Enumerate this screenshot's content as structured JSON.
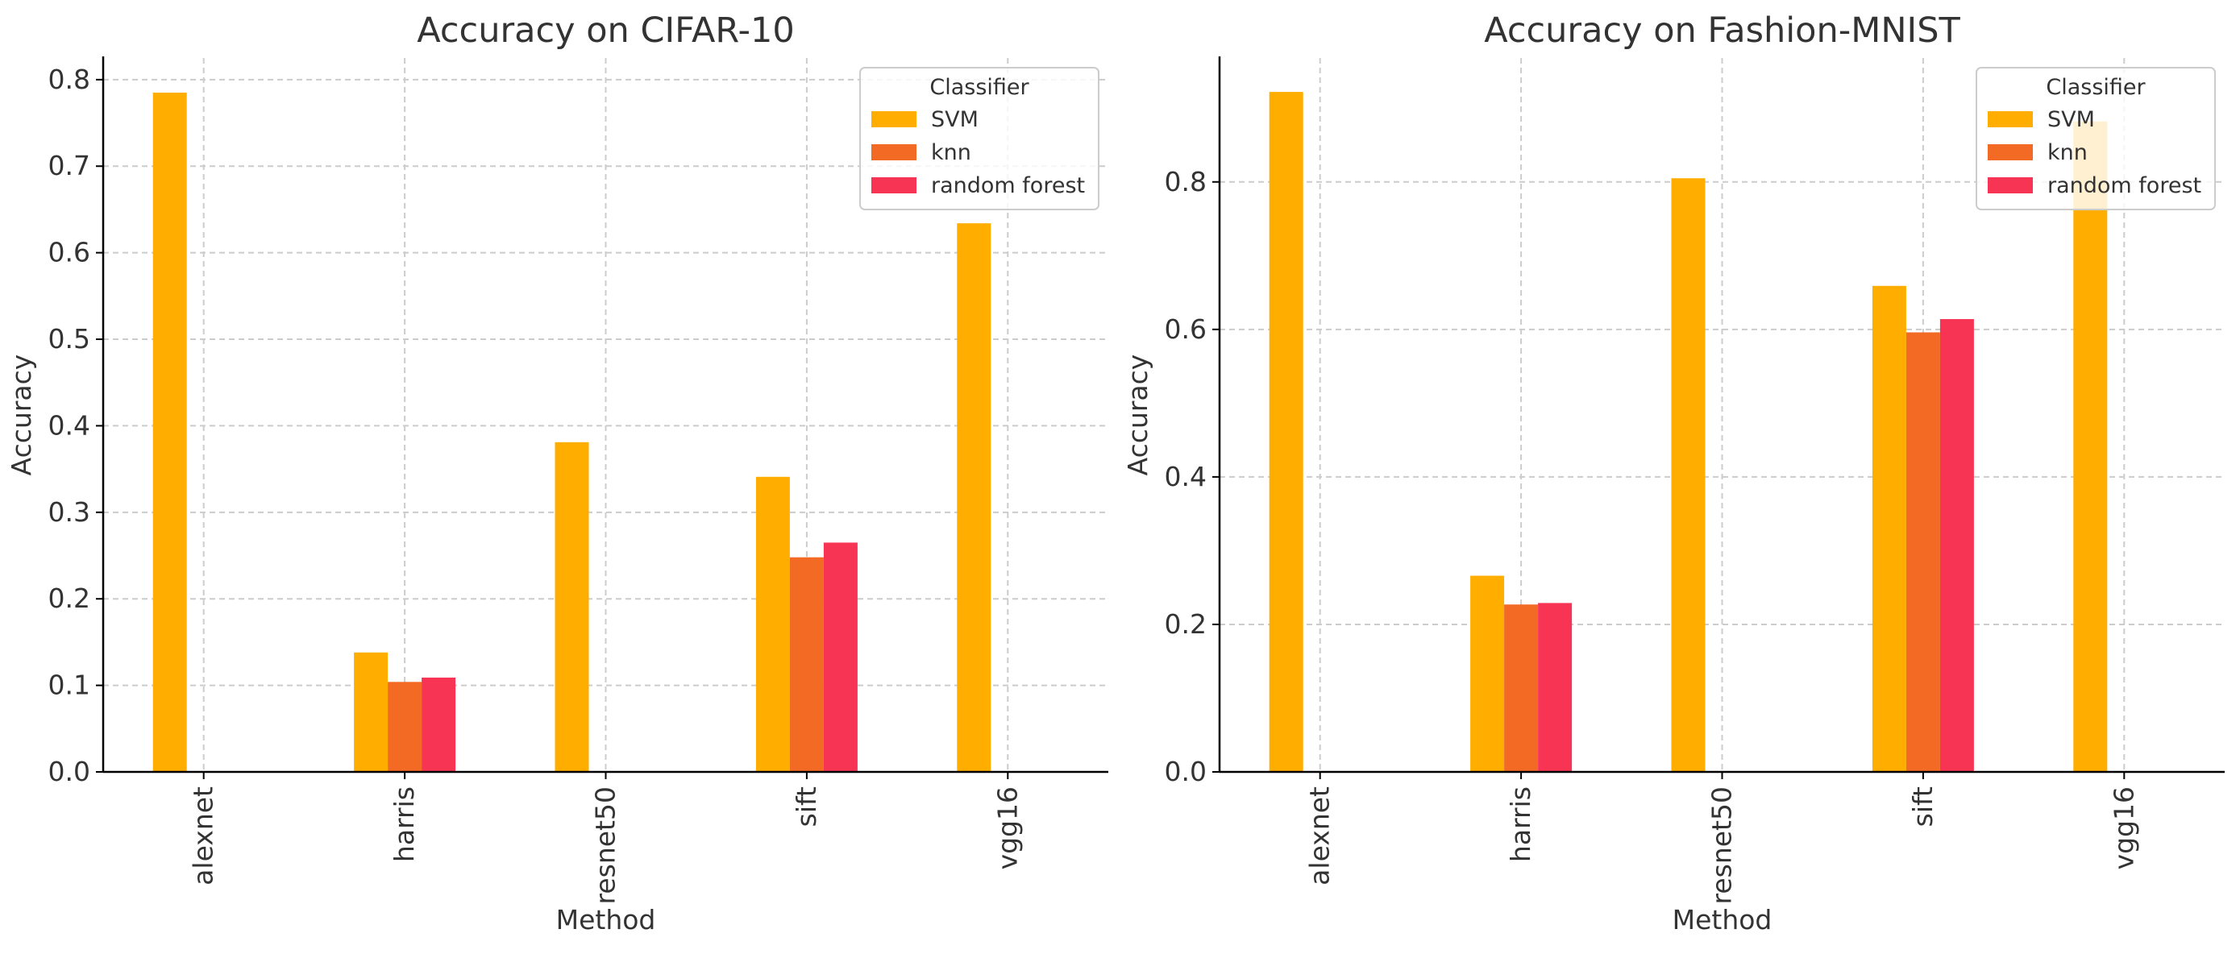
{
  "chart_data": [
    {
      "type": "bar",
      "title": "Accuracy on CIFAR-10",
      "xlabel": "Method",
      "ylabel": "Accuracy",
      "categories": [
        "alexnet",
        "harris",
        "resnet50",
        "sift",
        "vgg16"
      ],
      "series": [
        {
          "name": "SVM",
          "values": [
            0.785,
            0.138,
            0.381,
            0.341,
            0.634
          ]
        },
        {
          "name": "knn",
          "values": [
            null,
            0.104,
            null,
            0.248,
            null
          ]
        },
        {
          "name": "random forest",
          "values": [
            null,
            0.109,
            null,
            0.265,
            null
          ]
        }
      ],
      "ylim": [
        0,
        0.825
      ],
      "yticks": [
        0.0,
        0.1,
        0.2,
        0.3,
        0.4,
        0.5,
        0.6,
        0.7,
        0.8
      ],
      "ytick_labels": [
        "0.0",
        "0.1",
        "0.2",
        "0.3",
        "0.4",
        "0.5",
        "0.6",
        "0.7",
        "0.8"
      ],
      "grid": true,
      "legend": {
        "title": "Classifier",
        "placement": "top-right"
      }
    },
    {
      "type": "bar",
      "title": "Accuracy on Fashion-MNIST",
      "xlabel": "Method",
      "ylabel": "Accuracy",
      "categories": [
        "alexnet",
        "harris",
        "resnet50",
        "sift",
        "vgg16"
      ],
      "series": [
        {
          "name": "SVM",
          "values": [
            0.922,
            0.266,
            0.805,
            0.659,
            0.882
          ]
        },
        {
          "name": "knn",
          "values": [
            null,
            0.227,
            null,
            0.596,
            null
          ]
        },
        {
          "name": "random forest",
          "values": [
            null,
            0.229,
            null,
            0.614,
            null
          ]
        }
      ],
      "ylim": [
        0,
        0.968
      ],
      "yticks": [
        0.0,
        0.2,
        0.4,
        0.6,
        0.8
      ],
      "ytick_labels": [
        "0.0",
        "0.2",
        "0.4",
        "0.6",
        "0.8"
      ],
      "grid": true,
      "legend": {
        "title": "Classifier",
        "placement": "top-right"
      }
    }
  ],
  "colors": {
    "SVM": "#FFAE00",
    "knn": "#F26A24",
    "random forest": "#F83454"
  }
}
